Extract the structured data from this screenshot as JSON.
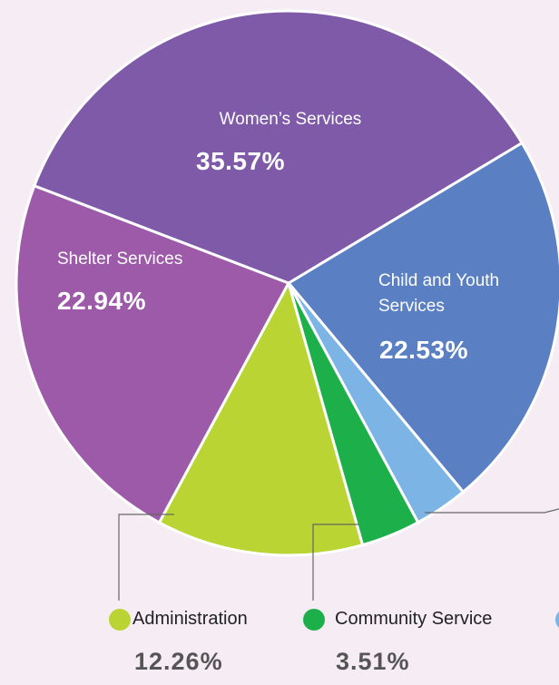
{
  "chart_data": {
    "type": "pie",
    "categories": [
      "Child and Youth Services",
      null,
      "Community Service",
      "Administration",
      "Shelter Services",
      "Women’s Services"
    ],
    "values": [
      22.53,
      3.19,
      3.51,
      12.26,
      22.94,
      35.57
    ],
    "value_labels": [
      "22.53%",
      null,
      "3.51%",
      "12.26%",
      "22.94%",
      "35.57%"
    ],
    "colors": [
      "#5a7fc3",
      "#7db4e6",
      "#1db04a",
      "#b9d433",
      "#9c5aa9",
      "#7e5aa9"
    ]
  }
}
